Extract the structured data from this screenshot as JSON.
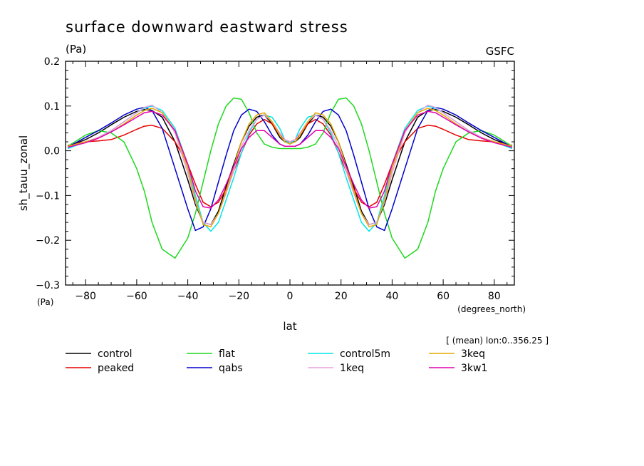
{
  "title": "surface downward eastward stress",
  "units_top": "(Pa)",
  "source": "GSFC",
  "averaging_note": "[ (mean) lon:0..356.25 ]",
  "chart_data": {
    "type": "line",
    "title": "surface downward eastward stress",
    "ylabel": "sh_tauu_zonal",
    "yunits": "(Pa)",
    "xlabel": "lat",
    "xunits": "(degrees_north)",
    "xlim": [
      -87.86,
      87.86
    ],
    "ylim": [
      -0.3,
      0.2
    ],
    "xticks": [
      -80,
      -60,
      -40,
      -20,
      0,
      20,
      40,
      60,
      80
    ],
    "xtick_labels": [
      "−80",
      "−60",
      "−40",
      "−20",
      "0",
      "20",
      "40",
      "60",
      "80"
    ],
    "yticks": [
      -0.3,
      -0.2,
      -0.1,
      0.0,
      0.1,
      0.2
    ],
    "ytick_labels": [
      "−0.3",
      "−0.2",
      "−0.1",
      "0.0",
      "0.1",
      "0.2"
    ],
    "grid": false,
    "legend_placement": "below",
    "x": [
      -87,
      -80,
      -75,
      -70,
      -65,
      -60,
      -57,
      -54,
      -50,
      -45,
      -40,
      -37,
      -34,
      -31,
      -28,
      -25,
      -22,
      -19,
      -16,
      -13,
      -10,
      -7,
      -4,
      -2,
      0,
      2,
      4,
      7,
      10,
      13,
      16,
      19,
      22,
      25,
      28,
      31,
      34,
      37,
      40,
      45,
      50,
      54,
      57,
      60,
      65,
      70,
      75,
      80,
      87
    ],
    "series": [
      {
        "name": "control",
        "color": "#000000",
        "values": [
          0.01,
          0.025,
          0.04,
          0.058,
          0.075,
          0.088,
          0.092,
          0.09,
          0.075,
          0.02,
          -0.065,
          -0.12,
          -0.16,
          -0.165,
          -0.135,
          -0.08,
          -0.03,
          0.02,
          0.055,
          0.075,
          0.08,
          0.06,
          0.03,
          0.02,
          0.02,
          0.02,
          0.03,
          0.06,
          0.08,
          0.075,
          0.055,
          0.02,
          -0.03,
          -0.08,
          -0.135,
          -0.165,
          -0.16,
          -0.12,
          -0.065,
          0.02,
          0.075,
          0.09,
          0.092,
          0.088,
          0.075,
          0.058,
          0.04,
          0.025,
          0.01
        ]
      },
      {
        "name": "peaked",
        "color": "#e60000",
        "values": [
          0.012,
          0.02,
          0.022,
          0.025,
          0.035,
          0.048,
          0.055,
          0.057,
          0.05,
          0.02,
          -0.03,
          -0.075,
          -0.115,
          -0.125,
          -0.115,
          -0.085,
          -0.045,
          -0.005,
          0.035,
          0.06,
          0.07,
          0.06,
          0.035,
          0.025,
          0.02,
          0.025,
          0.035,
          0.06,
          0.07,
          0.06,
          0.035,
          -0.005,
          -0.045,
          -0.085,
          -0.115,
          -0.125,
          -0.115,
          -0.075,
          -0.03,
          0.02,
          0.05,
          0.057,
          0.055,
          0.048,
          0.035,
          0.025,
          0.022,
          0.02,
          0.012
        ]
      },
      {
        "name": "flat",
        "color": "#1fd81f",
        "values": [
          0.01,
          0.035,
          0.045,
          0.04,
          0.02,
          -0.04,
          -0.09,
          -0.16,
          -0.22,
          -0.24,
          -0.195,
          -0.14,
          -0.07,
          0.0,
          0.06,
          0.1,
          0.118,
          0.115,
          0.085,
          0.04,
          0.015,
          0.008,
          0.005,
          0.005,
          0.005,
          0.005,
          0.005,
          0.008,
          0.015,
          0.04,
          0.085,
          0.115,
          0.118,
          0.1,
          0.06,
          0.0,
          -0.07,
          -0.14,
          -0.195,
          -0.24,
          -0.22,
          -0.16,
          -0.09,
          -0.04,
          0.02,
          0.04,
          0.045,
          0.035,
          0.01
        ]
      },
      {
        "name": "qabs",
        "color": "#0000cc",
        "values": [
          0.008,
          0.03,
          0.045,
          0.062,
          0.08,
          0.093,
          0.097,
          0.09,
          0.05,
          -0.04,
          -0.13,
          -0.178,
          -0.17,
          -0.13,
          -0.07,
          -0.01,
          0.045,
          0.08,
          0.093,
          0.088,
          0.065,
          0.035,
          0.015,
          0.01,
          0.01,
          0.01,
          0.015,
          0.035,
          0.065,
          0.088,
          0.093,
          0.08,
          0.045,
          -0.01,
          -0.07,
          -0.13,
          -0.17,
          -0.178,
          -0.13,
          -0.04,
          0.05,
          0.09,
          0.097,
          0.093,
          0.08,
          0.062,
          0.045,
          0.03,
          0.008
        ]
      },
      {
        "name": "control5m",
        "color": "#00e6e6",
        "values": [
          0.005,
          0.02,
          0.03,
          0.045,
          0.065,
          0.085,
          0.095,
          0.1,
          0.09,
          0.05,
          -0.03,
          -0.1,
          -0.16,
          -0.18,
          -0.16,
          -0.11,
          -0.06,
          -0.005,
          0.04,
          0.07,
          0.08,
          0.075,
          0.05,
          0.025,
          0.015,
          0.025,
          0.05,
          0.075,
          0.08,
          0.07,
          0.04,
          -0.005,
          -0.06,
          -0.11,
          -0.16,
          -0.18,
          -0.16,
          -0.1,
          -0.03,
          0.05,
          0.09,
          0.1,
          0.095,
          0.085,
          0.065,
          0.045,
          0.03,
          0.02,
          0.005
        ]
      },
      {
        "name": "1keq",
        "color": "#e8a0e0",
        "values": [
          0.01,
          0.02,
          0.03,
          0.045,
          0.065,
          0.085,
          0.097,
          0.102,
          0.085,
          0.04,
          -0.05,
          -0.115,
          -0.16,
          -0.165,
          -0.14,
          -0.095,
          -0.045,
          0.01,
          0.045,
          0.07,
          0.08,
          0.065,
          0.04,
          0.025,
          0.02,
          0.025,
          0.04,
          0.065,
          0.08,
          0.07,
          0.045,
          0.01,
          -0.045,
          -0.095,
          -0.14,
          -0.165,
          -0.16,
          -0.115,
          -0.05,
          0.04,
          0.085,
          0.102,
          0.097,
          0.085,
          0.065,
          0.045,
          0.03,
          0.02,
          0.01
        ]
      },
      {
        "name": "3keq",
        "color": "#e6a800",
        "values": [
          0.01,
          0.02,
          0.028,
          0.042,
          0.06,
          0.08,
          0.09,
          0.095,
          0.085,
          0.045,
          -0.04,
          -0.11,
          -0.165,
          -0.17,
          -0.14,
          -0.09,
          -0.035,
          0.02,
          0.06,
          0.08,
          0.085,
          0.065,
          0.035,
          0.02,
          0.015,
          0.02,
          0.035,
          0.065,
          0.085,
          0.08,
          0.06,
          0.02,
          -0.035,
          -0.09,
          -0.14,
          -0.17,
          -0.165,
          -0.11,
          -0.04,
          0.045,
          0.085,
          0.095,
          0.09,
          0.08,
          0.06,
          0.042,
          0.028,
          0.02,
          0.01
        ]
      },
      {
        "name": "3kw1",
        "color": "#e000b0",
        "values": [
          0.008,
          0.018,
          0.028,
          0.042,
          0.058,
          0.075,
          0.085,
          0.088,
          0.08,
          0.045,
          -0.03,
          -0.09,
          -0.125,
          -0.128,
          -0.11,
          -0.075,
          -0.035,
          0.005,
          0.03,
          0.045,
          0.045,
          0.03,
          0.015,
          0.01,
          0.01,
          0.01,
          0.015,
          0.03,
          0.045,
          0.045,
          0.03,
          0.005,
          -0.035,
          -0.075,
          -0.11,
          -0.128,
          -0.125,
          -0.09,
          -0.03,
          0.045,
          0.08,
          0.088,
          0.085,
          0.075,
          0.058,
          0.042,
          0.028,
          0.018,
          0.008
        ]
      }
    ]
  }
}
